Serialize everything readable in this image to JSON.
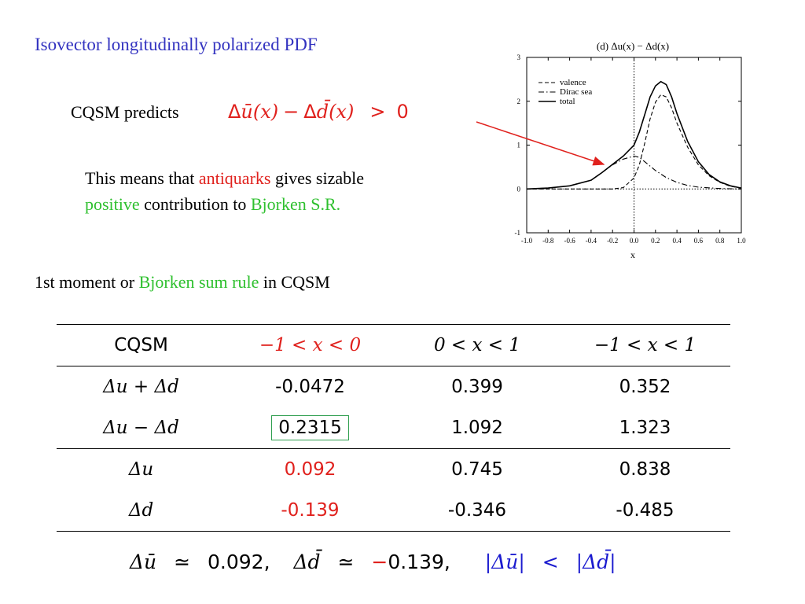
{
  "title": "Isovector longitudinally polarized PDF",
  "predict": {
    "prefix": "CQSM  predicts",
    "delta1": "Δ",
    "ubar": "ū",
    "arg1": "(x)",
    "minus": "−",
    "delta2": "Δ",
    "dbar": "d̄",
    "arg2": "(x)",
    "gt": ">",
    "zero": "0"
  },
  "meaning": {
    "part1": "This means that",
    "antiquarks": "antiquarks",
    "part2": "gives sizable",
    "positive": "positive",
    "part3": "contribution to",
    "bjorken": "Bjorken S.R."
  },
  "moment": {
    "part1": "1st moment or",
    "bjorken": "Bjorken sum rule",
    "part2": "in CQSM"
  },
  "table": {
    "header": {
      "label": "CQSM",
      "col1": "−1 < x < 0",
      "col2": "0 < x < 1",
      "col3": "−1 < x < 1"
    },
    "rows": [
      {
        "label": "Δu  +  Δd",
        "c1": "-0.0472",
        "c2": "0.399",
        "c3": "0.352"
      },
      {
        "label": "Δu  −  Δd",
        "c1": "0.2315",
        "c2": "1.092",
        "c3": "1.323"
      },
      {
        "label": "Δu",
        "c1": "0.092",
        "c2": "0.745",
        "c3": "0.838"
      },
      {
        "label": "Δd",
        "c1": "-0.139",
        "c2": "-0.346",
        "c3": "-0.485"
      }
    ]
  },
  "bottom": {
    "delta_ubar": "Δū",
    "approx1": "≃",
    "val1": "0.092,",
    "delta_dbar": "Δd̄",
    "approx2": "≃",
    "neg": "−",
    "val2": "0.139,",
    "abs_ubar": "|Δū|",
    "lt": "<",
    "abs_dbar": "|Δd̄|"
  },
  "chart_data": {
    "type": "line",
    "title": "(d) Δu(x) − Δd(x)",
    "xlabel": "x",
    "ylabel": "",
    "xlim": [
      -1.0,
      1.0
    ],
    "ylim": [
      -1,
      3
    ],
    "xticks": [
      "-1.0",
      "-0.8",
      "-0.6",
      "-0.4",
      "-0.2",
      "0.0",
      "0.2",
      "0.4",
      "0.6",
      "0.8",
      "1.0"
    ],
    "yticks": [
      "-1",
      "0",
      "1",
      "2",
      "3"
    ],
    "legend_position": "top-left",
    "series": [
      {
        "name": "valence",
        "style": "dashed",
        "points": [
          [
            -1.0,
            0
          ],
          [
            -0.4,
            0
          ],
          [
            -0.2,
            0
          ],
          [
            -0.1,
            0.03
          ],
          [
            0.0,
            0.25
          ],
          [
            0.05,
            0.55
          ],
          [
            0.1,
            1.05
          ],
          [
            0.15,
            1.6
          ],
          [
            0.2,
            1.98
          ],
          [
            0.25,
            2.15
          ],
          [
            0.3,
            2.1
          ],
          [
            0.35,
            1.85
          ],
          [
            0.4,
            1.5
          ],
          [
            0.5,
            0.95
          ],
          [
            0.6,
            0.55
          ],
          [
            0.7,
            0.3
          ],
          [
            0.8,
            0.15
          ],
          [
            0.9,
            0.06
          ],
          [
            1.0,
            0.02
          ]
        ]
      },
      {
        "name": "Dirac sea",
        "style": "dashdot",
        "points": [
          [
            -1.0,
            0.0
          ],
          [
            -0.8,
            0.02
          ],
          [
            -0.6,
            0.07
          ],
          [
            -0.4,
            0.2
          ],
          [
            -0.3,
            0.37
          ],
          [
            -0.2,
            0.55
          ],
          [
            -0.1,
            0.68
          ],
          [
            0.0,
            0.75
          ],
          [
            0.05,
            0.72
          ],
          [
            0.1,
            0.62
          ],
          [
            0.2,
            0.42
          ],
          [
            0.3,
            0.26
          ],
          [
            0.4,
            0.15
          ],
          [
            0.5,
            0.08
          ],
          [
            0.6,
            0.04
          ],
          [
            0.8,
            0.01
          ],
          [
            1.0,
            0.0
          ]
        ]
      },
      {
        "name": "total",
        "style": "solid",
        "points": [
          [
            -1.0,
            0.0
          ],
          [
            -0.8,
            0.02
          ],
          [
            -0.6,
            0.07
          ],
          [
            -0.4,
            0.2
          ],
          [
            -0.3,
            0.37
          ],
          [
            -0.2,
            0.56
          ],
          [
            -0.1,
            0.75
          ],
          [
            0.0,
            1.0
          ],
          [
            0.05,
            1.3
          ],
          [
            0.1,
            1.7
          ],
          [
            0.15,
            2.1
          ],
          [
            0.2,
            2.35
          ],
          [
            0.25,
            2.45
          ],
          [
            0.3,
            2.38
          ],
          [
            0.35,
            2.1
          ],
          [
            0.4,
            1.72
          ],
          [
            0.5,
            1.08
          ],
          [
            0.6,
            0.62
          ],
          [
            0.7,
            0.33
          ],
          [
            0.8,
            0.16
          ],
          [
            0.9,
            0.07
          ],
          [
            1.0,
            0.02
          ]
        ]
      }
    ],
    "reference_lines": [
      {
        "axis": "y",
        "value": 0,
        "style": "dotted"
      },
      {
        "axis": "x",
        "value": 0,
        "style": "dotted"
      }
    ]
  },
  "colors": {
    "title": "#3333c0",
    "red": "#e0211d",
    "green": "#2fc02f",
    "blue": "#1a1acf",
    "box": "#2e9e4e"
  }
}
